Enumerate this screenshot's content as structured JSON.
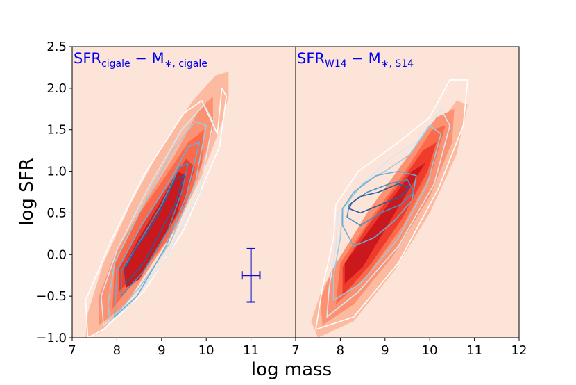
{
  "chart_data": {
    "type": "contour",
    "xlabel": "log mass",
    "ylabel": "log SFR",
    "ylim": [
      -1.0,
      2.5
    ],
    "yticks": [
      -1.0,
      -0.5,
      0.0,
      0.5,
      1.0,
      1.5,
      2.0,
      2.5
    ],
    "ytick_labels": [
      "−1.0",
      "−0.5",
      "0.0",
      "0.5",
      "1.0",
      "1.5",
      "2.0",
      "2.5"
    ],
    "colors": {
      "background": "#fde4d8",
      "filled_levels": [
        "#fcbba1",
        "#fc9272",
        "#fb6a4a",
        "#ef3b2c",
        "#cb181d"
      ],
      "line_levels": [
        "#ffffff",
        "#d6e6f4",
        "#9ecae1",
        "#6baed6",
        "#4292c6",
        "#2b5d9c"
      ],
      "title": "#0000ee",
      "errorbar": "#1010cc"
    },
    "panels": [
      {
        "name": "left",
        "title_main": "SFR",
        "title_sub1": "cigale",
        "title_mid": " − M",
        "title_sub2": "∗, cigale",
        "xlim": [
          7,
          12
        ],
        "xticks": [
          7,
          8,
          9,
          10,
          11
        ],
        "xtick_labels": [
          "7",
          "8",
          "9",
          "10",
          "11"
        ],
        "filled_contours": [
          [
            [
              7.3,
              -1.0
            ],
            [
              7.6,
              -0.95
            ],
            [
              8.2,
              -0.6
            ],
            [
              8.8,
              -0.1
            ],
            [
              9.4,
              0.4
            ],
            [
              9.9,
              0.95
            ],
            [
              10.3,
              1.5
            ],
            [
              10.5,
              1.9
            ],
            [
              10.5,
              2.2
            ],
            [
              10.2,
              2.15
            ],
            [
              9.7,
              1.85
            ],
            [
              9.0,
              1.3
            ],
            [
              8.3,
              0.6
            ],
            [
              7.7,
              -0.1
            ],
            [
              7.35,
              -0.7
            ]
          ],
          [
            [
              7.6,
              -0.85
            ],
            [
              8.2,
              -0.6
            ],
            [
              8.8,
              -0.1
            ],
            [
              9.3,
              0.3
            ],
            [
              9.8,
              0.9
            ],
            [
              10.15,
              1.5
            ],
            [
              10.15,
              1.9
            ],
            [
              9.85,
              1.75
            ],
            [
              9.3,
              1.2
            ],
            [
              8.6,
              0.6
            ],
            [
              7.95,
              0.0
            ],
            [
              7.6,
              -0.5
            ]
          ],
          [
            [
              7.9,
              -0.65
            ],
            [
              8.5,
              -0.25
            ],
            [
              9.1,
              0.15
            ],
            [
              9.55,
              0.6
            ],
            [
              9.9,
              1.1
            ],
            [
              9.95,
              1.5
            ],
            [
              9.6,
              1.35
            ],
            [
              9.1,
              0.95
            ],
            [
              8.45,
              0.45
            ],
            [
              7.95,
              -0.1
            ]
          ],
          [
            [
              8.05,
              -0.45
            ],
            [
              8.6,
              -0.1
            ],
            [
              9.1,
              0.25
            ],
            [
              9.5,
              0.6
            ],
            [
              9.75,
              1.05
            ],
            [
              9.55,
              1.15
            ],
            [
              9.05,
              0.75
            ],
            [
              8.5,
              0.3
            ],
            [
              8.05,
              -0.15
            ]
          ],
          [
            [
              8.2,
              -0.4
            ],
            [
              8.5,
              -0.3
            ],
            [
              8.95,
              0.1
            ],
            [
              9.35,
              0.5
            ],
            [
              9.55,
              0.95
            ],
            [
              9.35,
              1.0
            ],
            [
              9.0,
              0.65
            ],
            [
              8.5,
              0.2
            ],
            [
              8.15,
              -0.15
            ]
          ]
        ],
        "line_contours": [
          [
            [
              7.35,
              -1.0
            ],
            [
              7.7,
              -0.9
            ],
            [
              8.6,
              -0.45
            ],
            [
              9.5,
              0.3
            ],
            [
              10.3,
              1.3
            ],
            [
              10.45,
              1.9
            ],
            [
              10.35,
              2.0
            ],
            [
              10.25,
              1.45
            ],
            [
              9.9,
              1.85
            ],
            [
              9.5,
              1.7
            ],
            [
              8.6,
              0.95
            ],
            [
              7.9,
              0.2
            ],
            [
              7.3,
              -0.55
            ]
          ],
          [
            [
              7.7,
              -0.85
            ],
            [
              8.3,
              -0.6
            ],
            [
              9.1,
              -0.05
            ],
            [
              9.85,
              0.75
            ],
            [
              10.15,
              1.6
            ],
            [
              9.95,
              1.8
            ],
            [
              9.45,
              1.5
            ],
            [
              8.7,
              0.8
            ],
            [
              8.0,
              0.05
            ],
            [
              7.65,
              -0.5
            ]
          ],
          [
            [
              7.85,
              -0.8
            ],
            [
              8.5,
              -0.4
            ],
            [
              9.2,
              0.15
            ],
            [
              9.75,
              0.85
            ],
            [
              10.0,
              1.55
            ],
            [
              9.75,
              1.6
            ],
            [
              9.25,
              1.25
            ],
            [
              8.55,
              0.55
            ],
            [
              7.95,
              -0.1
            ],
            [
              7.8,
              -0.6
            ]
          ],
          [
            [
              7.95,
              -0.75
            ],
            [
              8.45,
              -0.5
            ],
            [
              9.1,
              0.1
            ],
            [
              9.55,
              0.7
            ],
            [
              9.85,
              1.35
            ],
            [
              9.6,
              1.3
            ],
            [
              9.2,
              0.9
            ],
            [
              8.55,
              0.35
            ],
            [
              8.0,
              -0.2
            ]
          ],
          [
            [
              8.1,
              -0.5
            ],
            [
              8.6,
              -0.2
            ],
            [
              9.15,
              0.3
            ],
            [
              9.45,
              0.75
            ],
            [
              9.6,
              1.1
            ],
            [
              9.4,
              1.05
            ],
            [
              9.0,
              0.6
            ],
            [
              8.45,
              0.1
            ],
            [
              8.1,
              -0.2
            ]
          ],
          [
            [
              8.2,
              -0.35
            ],
            [
              8.6,
              -0.1
            ],
            [
              9.0,
              0.3
            ],
            [
              9.3,
              0.6
            ],
            [
              9.5,
              0.95
            ],
            [
              9.3,
              0.9
            ],
            [
              8.9,
              0.45
            ],
            [
              8.4,
              0.05
            ],
            [
              8.2,
              -0.15
            ]
          ]
        ],
        "errorbar": {
          "x": 11.0,
          "y": -0.25,
          "xerr": 0.2,
          "yerr": 0.32
        }
      },
      {
        "name": "right",
        "title_main": "SFR",
        "title_sub1": "W14",
        "title_mid": " − M",
        "title_sub2": "∗, S14",
        "xlim": [
          7,
          12
        ],
        "xticks": [
          7,
          8,
          9,
          10,
          11,
          12
        ],
        "xtick_labels": [
          "7",
          "8",
          "9",
          "10",
          "11",
          "12"
        ],
        "filled_contours": [
          [
            [
              7.35,
              -0.8
            ],
            [
              7.5,
              -1.0
            ],
            [
              8.3,
              -0.8
            ],
            [
              9.2,
              -0.2
            ],
            [
              10.0,
              0.5
            ],
            [
              10.6,
              1.2
            ],
            [
              10.85,
              1.8
            ],
            [
              10.6,
              1.85
            ],
            [
              10.0,
              1.4
            ],
            [
              9.2,
              0.8
            ],
            [
              8.3,
              0.2
            ],
            [
              7.6,
              -0.4
            ]
          ],
          [
            [
              7.6,
              -0.85
            ],
            [
              8.3,
              -0.6
            ],
            [
              9.2,
              0.0
            ],
            [
              10.0,
              0.7
            ],
            [
              10.5,
              1.35
            ],
            [
              10.55,
              1.75
            ],
            [
              10.15,
              1.65
            ],
            [
              9.4,
              1.1
            ],
            [
              8.6,
              0.5
            ],
            [
              7.8,
              -0.2
            ],
            [
              7.55,
              -0.55
            ]
          ],
          [
            [
              7.9,
              -0.6
            ],
            [
              8.6,
              -0.25
            ],
            [
              9.4,
              0.35
            ],
            [
              10.05,
              1.0
            ],
            [
              10.35,
              1.55
            ],
            [
              10.05,
              1.5
            ],
            [
              9.45,
              1.0
            ],
            [
              8.7,
              0.45
            ],
            [
              8.0,
              -0.1
            ]
          ],
          [
            [
              8.05,
              -0.5
            ],
            [
              8.7,
              -0.1
            ],
            [
              9.4,
              0.45
            ],
            [
              9.95,
              1.0
            ],
            [
              10.15,
              1.35
            ],
            [
              9.85,
              1.25
            ],
            [
              9.25,
              0.8
            ],
            [
              8.55,
              0.3
            ],
            [
              8.05,
              -0.15
            ]
          ],
          [
            [
              8.1,
              -0.35
            ],
            [
              8.5,
              -0.15
            ],
            [
              9.0,
              0.3
            ],
            [
              9.5,
              0.75
            ],
            [
              9.9,
              1.1
            ],
            [
              9.6,
              1.0
            ],
            [
              9.0,
              0.55
            ],
            [
              8.45,
              0.15
            ],
            [
              8.1,
              -0.1
            ]
          ]
        ],
        "line_contours": [
          [
            [
              7.45,
              -0.9
            ],
            [
              8.3,
              -0.75
            ],
            [
              9.3,
              -0.1
            ],
            [
              10.2,
              0.8
            ],
            [
              10.75,
              1.55
            ],
            [
              10.85,
              2.1
            ],
            [
              10.45,
              2.1
            ],
            [
              10.0,
              1.65
            ],
            [
              9.3,
              1.35
            ],
            [
              8.4,
              1.0
            ],
            [
              7.9,
              0.6
            ],
            [
              7.85,
              0.2
            ],
            [
              7.6,
              -0.4
            ]
          ],
          [
            [
              7.7,
              -0.75
            ],
            [
              8.4,
              -0.45
            ],
            [
              9.3,
              0.1
            ],
            [
              10.1,
              0.85
            ],
            [
              10.45,
              1.55
            ],
            [
              10.25,
              1.75
            ],
            [
              9.7,
              1.35
            ],
            [
              9.1,
              1.15
            ],
            [
              8.5,
              0.85
            ],
            [
              7.95,
              0.5
            ],
            [
              7.9,
              0.1
            ],
            [
              7.75,
              -0.4
            ]
          ],
          [
            [
              7.85,
              -0.55
            ],
            [
              8.45,
              -0.35
            ],
            [
              9.3,
              0.2
            ],
            [
              9.95,
              0.85
            ],
            [
              10.25,
              1.45
            ],
            [
              10.0,
              1.55
            ],
            [
              9.55,
              1.2
            ],
            [
              9.0,
              1.0
            ],
            [
              8.5,
              0.85
            ],
            [
              8.05,
              0.55
            ],
            [
              8.0,
              0.2
            ],
            [
              7.85,
              -0.25
            ]
          ],
          [
            [
              8.05,
              0.35
            ],
            [
              8.3,
              0.1
            ],
            [
              8.75,
              0.2
            ],
            [
              9.2,
              0.4
            ],
            [
              9.6,
              0.65
            ],
            [
              9.7,
              0.95
            ],
            [
              9.3,
              1.0
            ],
            [
              8.8,
              0.95
            ],
            [
              8.3,
              0.75
            ],
            [
              8.05,
              0.55
            ]
          ],
          [
            [
              8.15,
              0.45
            ],
            [
              8.45,
              0.35
            ],
            [
              8.9,
              0.5
            ],
            [
              9.35,
              0.6
            ],
            [
              9.65,
              0.75
            ],
            [
              9.5,
              0.9
            ],
            [
              9.1,
              0.85
            ],
            [
              8.6,
              0.75
            ],
            [
              8.2,
              0.6
            ]
          ],
          [
            [
              8.2,
              0.55
            ],
            [
              8.45,
              0.5
            ],
            [
              8.9,
              0.6
            ],
            [
              9.35,
              0.7
            ],
            [
              9.55,
              0.8
            ],
            [
              9.3,
              0.85
            ],
            [
              8.85,
              0.75
            ],
            [
              8.45,
              0.7
            ],
            [
              8.25,
              0.62
            ]
          ]
        ],
        "errorbar": null
      }
    ]
  }
}
